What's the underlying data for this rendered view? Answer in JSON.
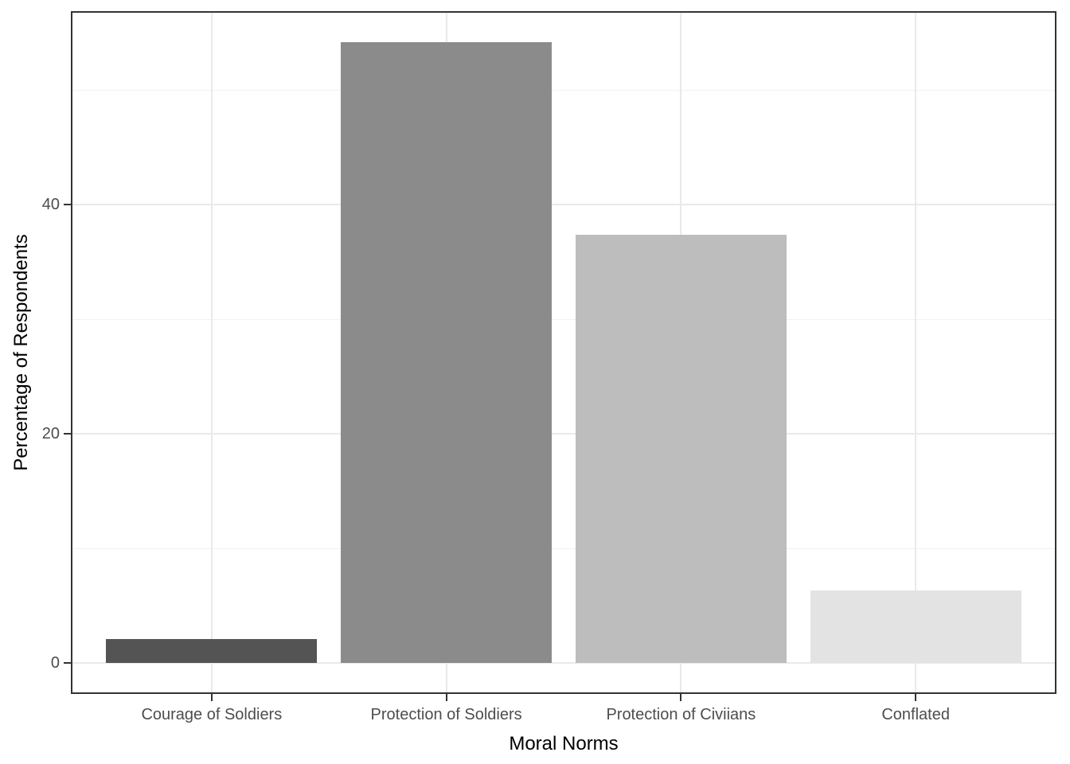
{
  "chart_data": {
    "type": "bar",
    "title": "",
    "xlabel": "Moral Norms",
    "ylabel": "Percentage of Respondents",
    "categories": [
      "Courage of Soldiers",
      "Protection of Soldiers",
      "Protection of Civiians",
      "Conflated"
    ],
    "values": [
      2.1,
      54.2,
      37.4,
      6.3
    ],
    "bar_colors": [
      "#545454",
      "#8b8b8b",
      "#bdbdbd",
      "#e3e3e3"
    ],
    "y_ticks": [
      0,
      20,
      40
    ],
    "y_tick_labels": [
      "0",
      "20",
      "40"
    ],
    "y_minor_ticks": [
      10,
      30,
      50
    ],
    "ylim": [
      -2.7,
      56.9
    ],
    "grid": "major-and-minor",
    "legend": "none",
    "colors": {
      "panel_border": "#333333",
      "tick_mark": "#333333",
      "grid_major": "#e9e9e9",
      "grid_minor": "#f1f1f1",
      "tick_label": "#4d4d4d",
      "axis_title": "#000000",
      "background": "#ffffff"
    }
  }
}
